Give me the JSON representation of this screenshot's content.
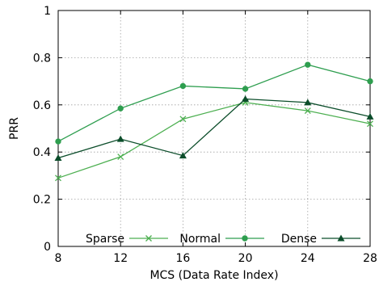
{
  "chart_data": {
    "type": "line",
    "title": "",
    "xlabel": "MCS (Data Rate Index)",
    "ylabel": "PRR",
    "x": [
      8,
      12,
      16,
      20,
      24,
      28
    ],
    "xlim": [
      8,
      28
    ],
    "ylim": [
      0,
      1
    ],
    "xticks": [
      "8",
      "12",
      "16",
      "20",
      "24",
      "28"
    ],
    "yticks": [
      "0",
      "0.2",
      "0.4",
      "0.6",
      "0.8",
      "1"
    ],
    "grid": true,
    "legend_position": "bottom",
    "series": [
      {
        "name": "Sparse",
        "marker": "x",
        "color": "#4caf50",
        "values": [
          0.29,
          0.38,
          0.54,
          0.61,
          0.575,
          0.52
        ]
      },
      {
        "name": "Normal",
        "marker": "circle",
        "color": "#2e9e4f",
        "values": [
          0.445,
          0.585,
          0.68,
          0.668,
          0.77,
          0.7
        ]
      },
      {
        "name": "Dense",
        "marker": "triangle",
        "color": "#0b4d2a",
        "values": [
          0.375,
          0.455,
          0.385,
          0.625,
          0.61,
          0.55
        ]
      }
    ]
  }
}
